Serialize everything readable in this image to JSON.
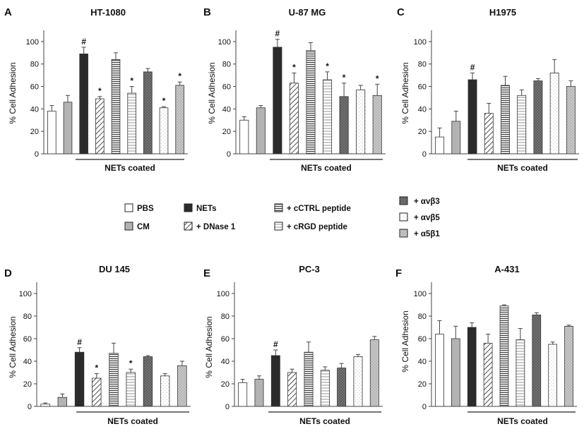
{
  "colors": {
    "pbs": "#ffffff",
    "cm": "#b3b3b3",
    "nets": "#2b2b2b",
    "dnase": "#ffffff",
    "cctrl": "#d0d0d0",
    "crgd": "#eeeeee",
    "avb3": "#6e6e6e",
    "avb5": "#f7f7f7",
    "a5b1": "#bcbcbc",
    "axis": "#444444"
  },
  "legend": {
    "items": [
      {
        "key": "pbs",
        "label": "PBS"
      },
      {
        "key": "cm",
        "label": "CM"
      },
      {
        "key": "nets",
        "label": "NETs"
      },
      {
        "key": "dnase",
        "label": "+ DNase 1"
      },
      {
        "key": "cctrl",
        "label": "+ cCTRL peptide"
      },
      {
        "key": "crgd",
        "label": "+ cRGD peptide"
      },
      {
        "key": "avb3",
        "label": "+ αvβ3"
      },
      {
        "key": "avb5",
        "label": "+ αvβ5"
      },
      {
        "key": "a5b1",
        "label": "+ α5β1"
      }
    ]
  },
  "chart_data": [
    {
      "type": "bar",
      "letter": "A",
      "title": "HT-1080",
      "ylabel": "% Cell Adhesion",
      "ylim": [
        0,
        110
      ],
      "yticks": [
        0,
        20,
        40,
        60,
        80,
        100
      ],
      "group_label": "NETs coated",
      "categories": [
        "pbs",
        "cm",
        "nets",
        "dnase",
        "cctrl",
        "crgd",
        "avb3",
        "avb5",
        "a5b1"
      ],
      "values": [
        38,
        46,
        89,
        49,
        84,
        54,
        73,
        41,
        61
      ],
      "errors": [
        5,
        6,
        6,
        2,
        6,
        6,
        3,
        1,
        3
      ],
      "markers": [
        "",
        "",
        "#",
        "*",
        "",
        "*",
        "",
        "*",
        "*"
      ]
    },
    {
      "type": "bar",
      "letter": "B",
      "title": "U-87 MG",
      "ylabel": "% Cell Adhesion",
      "ylim": [
        0,
        110
      ],
      "yticks": [
        0,
        20,
        40,
        60,
        80,
        100
      ],
      "group_label": "NETs coated",
      "categories": [
        "pbs",
        "cm",
        "nets",
        "dnase",
        "cctrl",
        "crgd",
        "avb3",
        "avb5",
        "a5b1"
      ],
      "values": [
        30,
        41,
        95,
        63,
        92,
        66,
        51,
        57,
        52
      ],
      "errors": [
        3,
        2,
        7,
        9,
        7,
        7,
        12,
        4,
        10
      ],
      "markers": [
        "",
        "",
        "#",
        "*",
        "",
        "*",
        "*",
        "",
        "*"
      ]
    },
    {
      "type": "bar",
      "letter": "C",
      "title": "H1975",
      "ylabel": "% Cell Adhesion",
      "ylim": [
        0,
        110
      ],
      "yticks": [
        0,
        20,
        40,
        60,
        80,
        100
      ],
      "group_label": "NETs coated",
      "categories": [
        "pbs",
        "cm",
        "nets",
        "dnase",
        "cctrl",
        "crgd",
        "avb3",
        "avb5",
        "a5b1"
      ],
      "values": [
        15,
        29,
        66,
        36,
        61,
        52,
        65,
        72,
        60
      ],
      "errors": [
        8,
        9,
        6,
        9,
        8,
        5,
        2,
        12,
        5
      ],
      "markers": [
        "",
        "",
        "#",
        "",
        "",
        "",
        "",
        "",
        ""
      ]
    },
    {
      "type": "bar",
      "letter": "D",
      "title": "DU 145",
      "ylabel": "% Cell Adhesion",
      "ylim": [
        0,
        110
      ],
      "yticks": [
        0,
        20,
        40,
        60,
        80,
        100
      ],
      "group_label": "NETs coated",
      "categories": [
        "pbs",
        "cm",
        "nets",
        "dnase",
        "cctrl",
        "crgd",
        "avb3",
        "avb5",
        "a5b1"
      ],
      "values": [
        2,
        8,
        48,
        25,
        47,
        30,
        44,
        27,
        36
      ],
      "errors": [
        1,
        3,
        4,
        4,
        9,
        3,
        1,
        2,
        4
      ],
      "markers": [
        "",
        "",
        "#",
        "*",
        "",
        "*",
        "",
        "",
        ""
      ]
    },
    {
      "type": "bar",
      "letter": "E",
      "title": "PC-3",
      "ylabel": "% Cell Adhesion",
      "ylim": [
        0,
        110
      ],
      "yticks": [
        0,
        20,
        40,
        60,
        80,
        100
      ],
      "group_label": "NETs coated",
      "categories": [
        "pbs",
        "cm",
        "nets",
        "dnase",
        "cctrl",
        "crgd",
        "avb3",
        "avb5",
        "a5b1"
      ],
      "values": [
        21,
        24,
        45,
        30,
        48,
        32,
        34,
        44,
        59
      ],
      "errors": [
        3,
        3,
        5,
        3,
        9,
        3,
        4,
        2,
        3
      ],
      "markers": [
        "",
        "",
        "#",
        "",
        "",
        "",
        "",
        "",
        ""
      ]
    },
    {
      "type": "bar",
      "letter": "F",
      "title": "A-431",
      "ylabel": "% Cell Adhesion",
      "ylim": [
        0,
        110
      ],
      "yticks": [
        0,
        20,
        40,
        60,
        80,
        100
      ],
      "group_label": "NETs coated",
      "categories": [
        "pbs",
        "cm",
        "nets",
        "dnase",
        "cctrl",
        "crgd",
        "avb3",
        "avb5",
        "a5b1"
      ],
      "values": [
        64,
        60,
        70,
        56,
        89,
        59,
        81,
        55,
        71
      ],
      "errors": [
        12,
        11,
        4,
        8,
        1,
        10,
        2,
        2,
        1
      ],
      "markers": [
        "",
        "",
        "",
        "",
        "",
        "",
        "",
        "",
        ""
      ]
    }
  ]
}
